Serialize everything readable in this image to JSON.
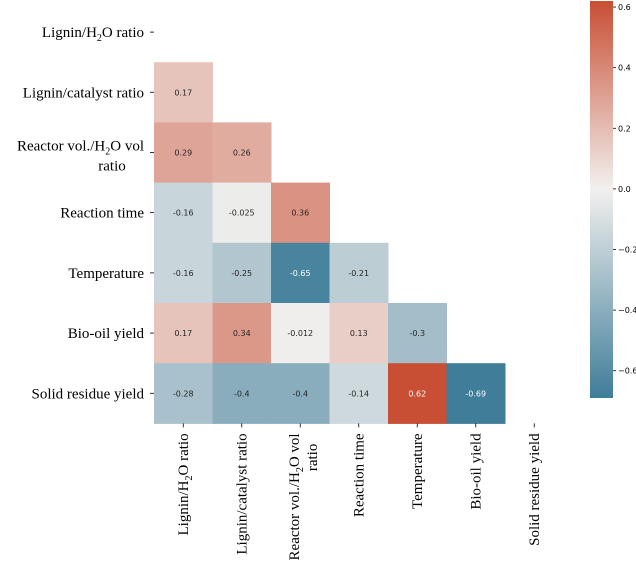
{
  "chart_data": {
    "type": "heatmap",
    "title": "",
    "variables": [
      "Lignin/H2O ratio",
      "Lignin/catalyst ratio",
      "Reactor vol./H2O vol ratio",
      "Reaction time",
      "Temperature",
      "Bio-oil yield",
      "Solid residue yield"
    ],
    "row_labels": [
      [
        "Lignin/H",
        "2",
        "O ratio"
      ],
      [
        "Lignin/catalyst ratio"
      ],
      [
        "Reactor vol./H",
        "2",
        "O vol"
      ],
      [
        "Reaction time"
      ],
      [
        "Temperature"
      ],
      [
        "Bio-oil yield"
      ],
      [
        "Solid residue yield"
      ]
    ],
    "row_label_line2": [
      "",
      "",
      "ratio",
      "",
      "",
      "",
      ""
    ],
    "col_labels": [
      [
        "Lignin/H",
        "2",
        "O ratio"
      ],
      [
        "Lignin/catalyst ratio"
      ],
      [
        "Reactor vol./H",
        "2",
        "O vol"
      ],
      [
        "Reaction time"
      ],
      [
        "Temperature"
      ],
      [
        "Bio-oil yield"
      ],
      [
        "Solid residue yield"
      ]
    ],
    "col_label_line2": [
      "",
      "",
      "ratio",
      "",
      "",
      "",
      ""
    ],
    "mask": "upper-triangle-including-diagonal",
    "values": [
      [
        null,
        null,
        null,
        null,
        null,
        null,
        null
      ],
      [
        0.17,
        null,
        null,
        null,
        null,
        null,
        null
      ],
      [
        0.29,
        0.26,
        null,
        null,
        null,
        null,
        null
      ],
      [
        -0.16,
        -0.025,
        0.36,
        null,
        null,
        null,
        null
      ],
      [
        -0.16,
        -0.25,
        -0.65,
        -0.21,
        null,
        null,
        null
      ],
      [
        0.17,
        0.34,
        -0.012,
        0.13,
        -0.3,
        null,
        null
      ],
      [
        -0.28,
        -0.4,
        -0.4,
        -0.14,
        0.62,
        -0.69,
        null
      ]
    ],
    "value_labels": [
      [
        null,
        null,
        null,
        null,
        null,
        null,
        null
      ],
      [
        "0.17",
        null,
        null,
        null,
        null,
        null,
        null
      ],
      [
        "0.29",
        "0.26",
        null,
        null,
        null,
        null,
        null
      ],
      [
        "-0.16",
        "-0.025",
        "0.36",
        null,
        null,
        null,
        null
      ],
      [
        "-0.16",
        "-0.25",
        "-0.65",
        "-0.21",
        null,
        null,
        null
      ],
      [
        "0.17",
        "0.34",
        "-0.012",
        "0.13",
        "-0.3",
        null,
        null
      ],
      [
        "-0.28",
        "-0.4",
        "-0.4",
        "-0.14",
        "0.62",
        "-0.69",
        null
      ]
    ],
    "colorbar": {
      "vmin": -0.69,
      "vmax": 0.62,
      "ticks": [
        0.6,
        0.4,
        0.2,
        0.0,
        -0.2,
        -0.4,
        -0.6
      ],
      "tick_labels": [
        "0.6",
        "0.4",
        "0.2",
        "0.0",
        "−0.2",
        "−0.4",
        "−0.6"
      ],
      "colormap": "diverging_blue_white_red",
      "color_negative": "#3f7d99",
      "color_zero": "#f2f0ee",
      "color_positive": "#c84e34"
    }
  }
}
